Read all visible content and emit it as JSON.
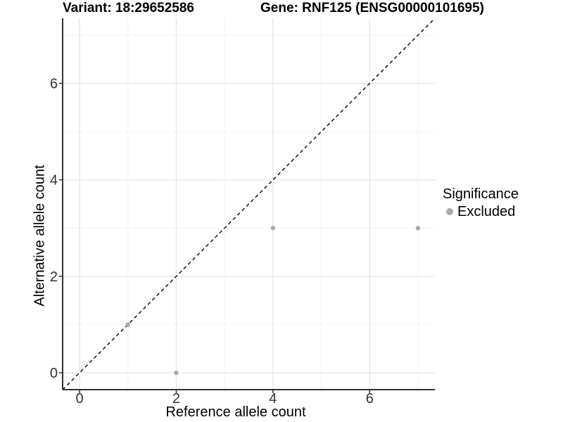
{
  "header": {
    "variant_title": "Variant: 18:29652586",
    "gene_title": "Gene: RNF125 (ENSG00000101695)"
  },
  "chart_data": {
    "type": "scatter",
    "xlabel": "Reference allele count",
    "ylabel": "Alternative allele count",
    "xlim": [
      -0.35,
      7.35
    ],
    "ylim": [
      -0.35,
      7.35
    ],
    "x_major_ticks": [
      0,
      2,
      4,
      6
    ],
    "y_major_ticks": [
      0,
      2,
      4,
      6
    ],
    "x_minor_ticks": [
      1,
      3,
      5,
      7
    ],
    "y_minor_ticks": [
      1,
      3,
      5,
      7
    ],
    "grid": true,
    "series": [
      {
        "name": "Excluded",
        "color": "#a9a9a9",
        "points": [
          {
            "x": 1,
            "y": 1
          },
          {
            "x": 2,
            "y": 0
          },
          {
            "x": 4,
            "y": 3
          },
          {
            "x": 7,
            "y": 3
          }
        ]
      }
    ],
    "reference_line": {
      "type": "identity",
      "equation": "y = x",
      "style": "dashed",
      "color": "#000000"
    },
    "legend": {
      "title": "Significance",
      "position": "right",
      "items": [
        {
          "label": "Excluded",
          "color": "#a9a9a9"
        }
      ]
    },
    "colors": {
      "major_grid": "#e4e4e4",
      "minor_grid": "#f2f2f2",
      "axis": "#333333",
      "tick_label": "#333333",
      "point": "#a9a9a9",
      "background": "#ffffff"
    }
  }
}
